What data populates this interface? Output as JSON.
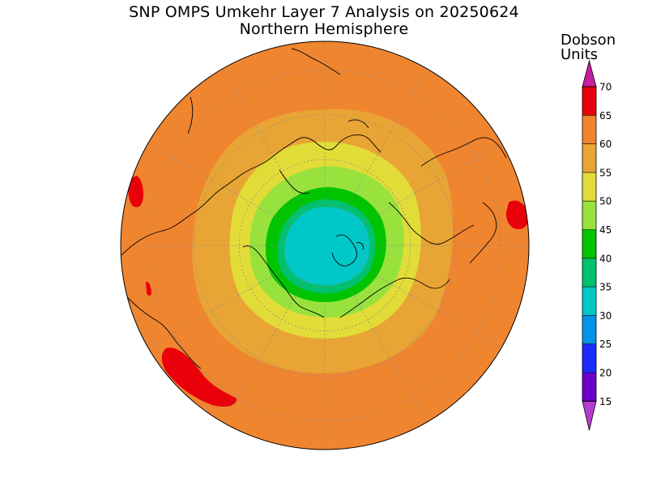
{
  "title": "SNP OMPS Umkehr Layer 7 Analysis on 20250624",
  "subtitle": "Northern Hemisphere",
  "colorbar": {
    "unit_line1": "Dobson",
    "unit_line2": "Units",
    "ticks": [
      "70",
      "65",
      "60",
      "55",
      "50",
      "45",
      "40",
      "35",
      "30",
      "25",
      "20",
      "15"
    ],
    "bands": [
      {
        "range": "65-70",
        "color": "#e8000b"
      },
      {
        "range": "60-65",
        "color": "#f08530"
      },
      {
        "range": "55-60",
        "color": "#e8a535"
      },
      {
        "range": "50-55",
        "color": "#e2dc38"
      },
      {
        "range": "45-50",
        "color": "#99e23e"
      },
      {
        "range": "40-45",
        "color": "#00c400"
      },
      {
        "range": "35-40",
        "color": "#00c16e"
      },
      {
        "range": "30-35",
        "color": "#00c8c8"
      },
      {
        "range": "25-30",
        "color": "#0095e6"
      },
      {
        "range": "20-25",
        "color": "#1a2bff"
      },
      {
        "range": "15-20",
        "color": "#6a00cc"
      }
    ],
    "over_color": "#c81ea0",
    "under_color": "#b43cd2"
  },
  "map": {
    "projection": "north-polar-stereographic",
    "gridlines": "dotted",
    "colors": {
      "background": "#f08530",
      "ring60": "#e8a535",
      "ring55": "#e2dc38",
      "ring50": "#99e23e",
      "ring45": "#00c400",
      "ring40": "#00c16e",
      "core": "#00c8c8",
      "high": "#e8000b",
      "coast": "#000000",
      "grid": "#888888"
    }
  }
}
